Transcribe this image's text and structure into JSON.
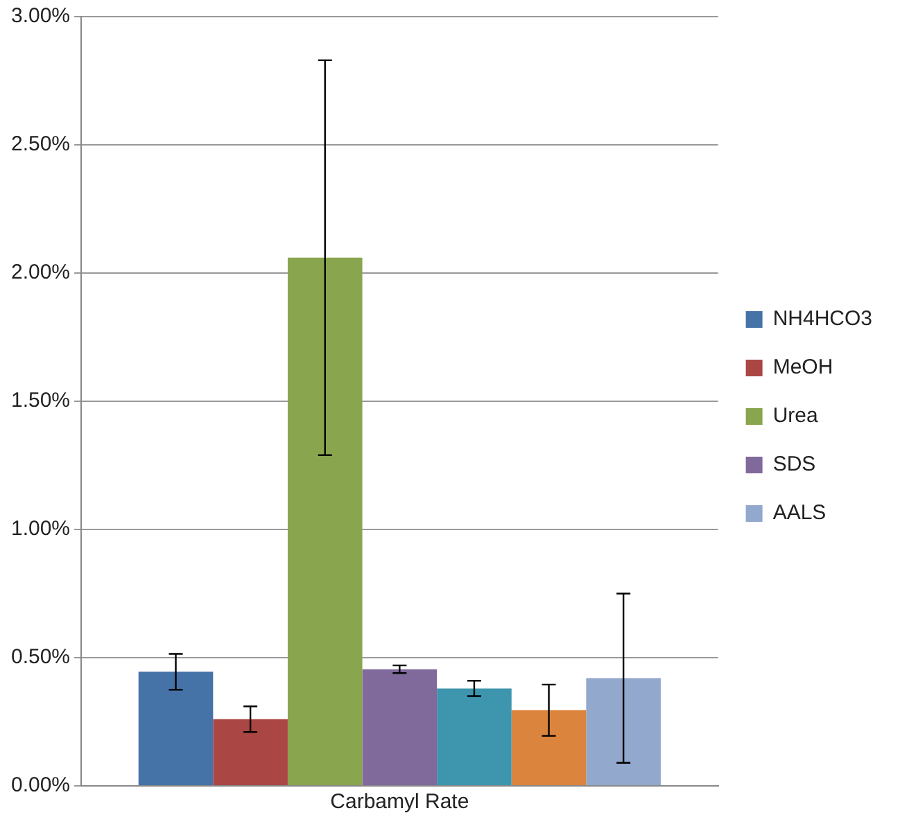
{
  "chart_data": {
    "type": "bar",
    "categories": [
      "Carbamyl Rate"
    ],
    "series": [
      {
        "name": "NH4HCO3",
        "color": "#4572a7",
        "values": [
          0.445
        ],
        "errors": [
          0.07
        ]
      },
      {
        "name": "MeOH",
        "color": "#aa4643",
        "values": [
          0.26
        ],
        "errors": [
          0.05
        ]
      },
      {
        "name": "Urea",
        "color": "#89a54e",
        "values": [
          2.06
        ],
        "errors": [
          0.77
        ]
      },
      {
        "name": "SDS",
        "color": "#80699b",
        "values": [
          0.455
        ],
        "errors": [
          0.015
        ]
      },
      {
        "color": "#3d96ae",
        "values": [
          0.38
        ],
        "errors": [
          0.03
        ]
      },
      {
        "color": "#db843d",
        "values": [
          0.295
        ],
        "errors": [
          0.1
        ]
      },
      {
        "name": "AALS",
        "color": "#92a8cd",
        "values": [
          0.42
        ],
        "errors": [
          0.33
        ]
      }
    ],
    "ylim": [
      0,
      3
    ],
    "yticks": [
      {
        "value": 0,
        "label": "0.00%"
      },
      {
        "value": 0.5,
        "label": "0.50%"
      },
      {
        "value": 1,
        "label": "1.00%"
      },
      {
        "value": 1.5,
        "label": "1.50%"
      },
      {
        "value": 2,
        "label": "2.00%"
      },
      {
        "value": 2.5,
        "label": "2.50%"
      },
      {
        "value": 3,
        "label": "3.00%"
      }
    ],
    "grid": "y",
    "legend": "right"
  }
}
